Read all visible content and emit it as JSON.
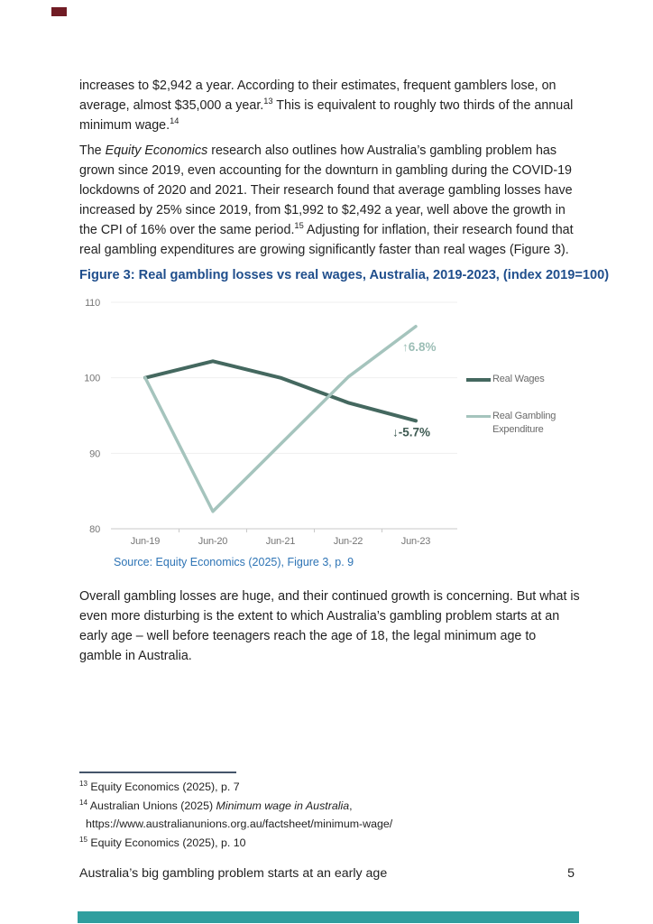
{
  "document": {
    "paragraphs": {
      "p1": {
        "runs": [
          {
            "t": "increases to $2,942 a year. According to their estimates, frequent gamblers lose, on average, almost $35,000 a year."
          },
          {
            "t": "13",
            "s": "sup"
          },
          {
            "t": " This is equivalent to roughly two thirds of the annual minimum wage."
          },
          {
            "t": "14",
            "s": "sup"
          }
        ]
      },
      "p2": {
        "runs": [
          {
            "t": "The "
          },
          {
            "t": "Equity Economics",
            "s": "i"
          },
          {
            "t": " research also outlines how Australia’s gambling problem has grown since 2019, even accounting for the downturn in gambling during the COVID-19 lockdowns of 2020 and 2021. Their research found that average gambling losses have increased by 25% since 2019, from $1,992 to $2,492 a year, well above the growth in the CPI of 16% over the same period."
          },
          {
            "t": "15",
            "s": "sup"
          },
          {
            "t": " Adjusting for inflation, their research found that real gambling expenditures are growing significantly faster than real wages (Figure 3)."
          }
        ]
      },
      "p3": {
        "runs": [
          {
            "t": "Overall gambling losses are huge, and their continued growth is concerning. But what is even more disturbing is the extent to which Australia’s gambling problem starts at an early age – well before teenagers reach the age of 18, the legal minimum age to gamble in Australia."
          }
        ]
      }
    },
    "figure_source": "Source: Equity Economics (2025), Figure 3, p. 9",
    "footnotes": {
      "f13": {
        "runs": [
          {
            "t": "13",
            "s": "sup"
          },
          {
            "t": " Equity Economics (2025), p. 7"
          }
        ]
      },
      "f14": {
        "runs": [
          {
            "t": "14",
            "s": "sup"
          },
          {
            "t": " Australian Unions (2025) "
          },
          {
            "t": "Minimum wage in Australia",
            "s": "i"
          },
          {
            "t": ","
          }
        ]
      },
      "f14_url": {
        "runs": [
          {
            "t": "https://www.australianunions.org.au/factsheet/minimum-wage/"
          }
        ]
      },
      "f15": {
        "runs": [
          {
            "t": "15",
            "s": "sup"
          },
          {
            "t": " Equity Economics (2025), p. 10"
          }
        ]
      }
    },
    "footer": {
      "title": "Australia’s big gambling problem starts at an early age",
      "page_number": "5"
    }
  },
  "decor": {
    "accent_heading": "#1F4E8C",
    "accent_link": "#2E74B5",
    "top_mark_color": "#701C24",
    "bottom_bar_color": "#2F9E9E",
    "footnote_rule_color": "#44546A"
  },
  "chart_data": {
    "type": "line",
    "title": "Figure 3: Real gambling losses vs real wages, Australia, 2019-2023, (index 2019=100)",
    "categories": [
      "Jun-19",
      "Jun-20",
      "Jun-21",
      "Jun-22",
      "Jun-23"
    ],
    "series": [
      {
        "name": "Real Wages",
        "color": "#44685F",
        "values": [
          100,
          102.2,
          100,
          96.7,
          94.3
        ],
        "annotation": {
          "text": "↓-5.7%",
          "color": "#3E5A52"
        }
      },
      {
        "name": "Real Gambling Expenditure",
        "color": "#A5C4BD",
        "values": [
          100,
          82.3,
          91.2,
          100.1,
          106.8
        ],
        "annotation": {
          "text": "↑6.8%",
          "color": "#9CBEB6"
        }
      }
    ],
    "ylim": [
      80,
      110
    ],
    "yticks": [
      80,
      90,
      100,
      110
    ],
    "grid": true,
    "grid_color": "#EFEFEF",
    "axis_color": "#C9C9C9",
    "label_color": "#767676",
    "legend_position": "right"
  }
}
